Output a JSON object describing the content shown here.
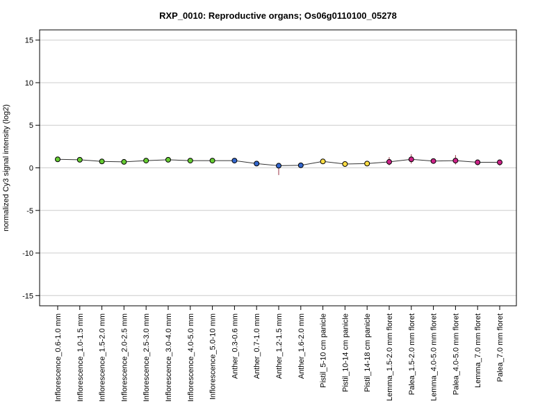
{
  "chart_data": {
    "type": "line",
    "title": "RXP_0010: Reproductive organs; Os06g0110100_05278",
    "ylabel": "normalized Cy3 signal intensity (log2)",
    "xlabel": "",
    "ylim": [
      -16.2,
      16.2
    ],
    "yticks": [
      -15,
      -10,
      -5,
      0,
      5,
      10,
      15
    ],
    "grid": true,
    "categories": [
      "Inflorescence_0.6-1.0 mm",
      "Inflorescence_1.0-1.5 mm",
      "Inflorescence_1.5-2.0 mm",
      "Inflorescence_2.0-2.5 mm",
      "Inflorescence_2.5-3.0 mm",
      "Inflorescence_3.0-4.0 mm",
      "Inflorescence_4.0-5.0 mm",
      "Inflorescence_5.0-10 mm",
      "Anther_0.3-0.6 mm",
      "Anther_0.7-1.0 mm",
      "Anther_1.2-1.5 mm",
      "Anther_1.6-2.0 mm",
      "Pistil_5-10 cm panicle",
      "Pistil_10-14 cm panicle",
      "Pistil_14-18 cm panicle",
      "Lemma_1.5-2.0 mm floret",
      "Palea_1.5-2.0 mm floret",
      "Lemma_4.0-5.0 mm floret",
      "Palea_4.0-5.0 mm floret",
      "Lemma_7.0 mm floret",
      "Palea_7.0 mm floret"
    ],
    "values": [
      1.0,
      0.95,
      0.75,
      0.7,
      0.85,
      0.95,
      0.85,
      0.85,
      0.85,
      0.5,
      0.25,
      0.3,
      0.75,
      0.45,
      0.5,
      0.7,
      1.0,
      0.8,
      0.85,
      0.65,
      0.65
    ],
    "error_low": [
      0.9,
      0.85,
      0.65,
      0.6,
      0.75,
      0.85,
      0.75,
      0.75,
      0.75,
      0.4,
      -0.85,
      0.2,
      0.6,
      0.35,
      0.4,
      0.3,
      0.5,
      0.55,
      0.4,
      0.3,
      0.25
    ],
    "error_high": [
      1.1,
      1.05,
      0.85,
      0.8,
      0.95,
      1.05,
      0.95,
      0.95,
      0.95,
      0.6,
      0.35,
      0.4,
      0.9,
      0.55,
      0.6,
      1.25,
      1.6,
      1.1,
      1.5,
      0.9,
      0.95
    ],
    "point_colors": [
      "#66cc33",
      "#66cc33",
      "#66cc33",
      "#66cc33",
      "#66cc33",
      "#66cc33",
      "#66cc33",
      "#66cc33",
      "#3366cc",
      "#3366cc",
      "#3366cc",
      "#3366cc",
      "#ffdd44",
      "#ffdd44",
      "#ffdd44",
      "#cc2288",
      "#cc2288",
      "#cc2288",
      "#cc2288",
      "#cc2288",
      "#cc2288"
    ],
    "line_color": "#333333",
    "errorbar_color": "#993344",
    "gridline_color": "#cccccc"
  }
}
